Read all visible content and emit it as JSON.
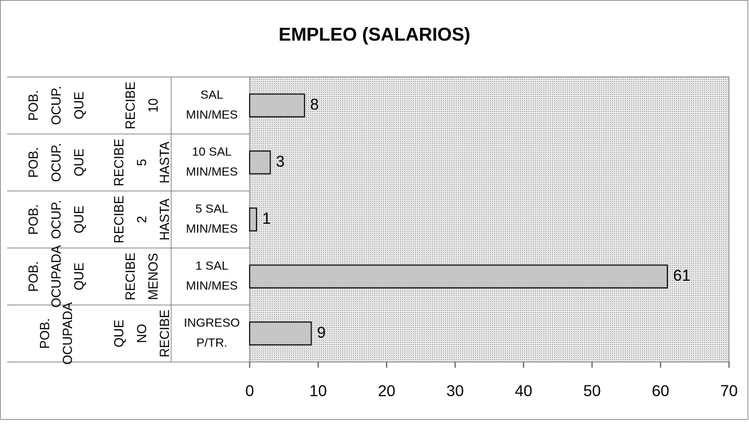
{
  "chart_data": {
    "type": "bar",
    "orientation": "horizontal",
    "title": "EMPLEO (SALARIOS)",
    "categories": [
      [
        [
          "POB.",
          "OCUP.",
          "QUE"
        ],
        [
          "RECIBE",
          "10"
        ],
        [
          "SAL",
          "MIN/MES"
        ]
      ],
      [
        [
          "POB.",
          "OCUP.",
          "QUE"
        ],
        [
          "RECIBE",
          "5",
          "HASTA"
        ],
        [
          "10 SAL",
          "MIN/MES"
        ]
      ],
      [
        [
          "POB.",
          "OCUP.",
          "QUE"
        ],
        [
          "RECIBE",
          "2",
          "HASTA"
        ],
        [
          "5 SAL",
          "MIN/MES"
        ]
      ],
      [
        [
          "POB.",
          "OCUPADA",
          "QUE"
        ],
        [
          "RECIBE",
          "MENOS"
        ],
        [
          "1 SAL",
          "MIN/MES"
        ]
      ],
      [
        [
          "POB.",
          "OCUPADA"
        ],
        [
          "QUE",
          "NO",
          "RECIBE"
        ],
        [
          "INGRESO",
          "P/TR."
        ]
      ]
    ],
    "values": [
      8,
      3,
      1,
      61,
      9
    ],
    "color": "#d9d9d9",
    "xlim": [
      0,
      70
    ],
    "xticks": [
      0,
      10,
      20,
      30,
      40,
      50,
      60,
      70
    ]
  }
}
